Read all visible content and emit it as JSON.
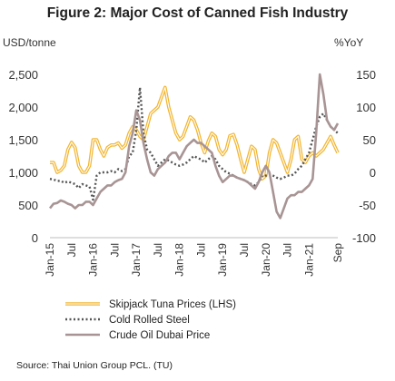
{
  "chart_data": {
    "type": "line",
    "title": "Figure 2: Major Cost of Canned Fish Industry",
    "y_left_unit": "USD/tonne",
    "y_right_unit": "%YoY",
    "ylim_left": [
      0,
      2500
    ],
    "ylim_right": [
      -100,
      150
    ],
    "y_left_ticks": [
      "0",
      "500",
      "1,000",
      "1,500",
      "2,000",
      "2,500"
    ],
    "y_right_ticks": [
      "-100",
      "-50",
      "0",
      "50",
      "100",
      "150"
    ],
    "x_start": "2015-01",
    "x_end": "2021-09",
    "x_tick_labels": [
      {
        "label": "Jan-15",
        "date": "2015-01"
      },
      {
        "label": "Jul",
        "date": "2015-07"
      },
      {
        "label": "Jan-16",
        "date": "2016-01"
      },
      {
        "label": "Jul",
        "date": "2016-07"
      },
      {
        "label": "Jan-17",
        "date": "2017-01"
      },
      {
        "label": "Jul",
        "date": "2017-07"
      },
      {
        "label": "Jan-18",
        "date": "2018-01"
      },
      {
        "label": "Jul",
        "date": "2018-07"
      },
      {
        "label": "Jan-19",
        "date": "2019-01"
      },
      {
        "label": "Jul",
        "date": "2019-07"
      },
      {
        "label": "Jan-20",
        "date": "2020-01"
      },
      {
        "label": "Jul",
        "date": "2020-07"
      },
      {
        "label": "Jan-21",
        "date": "2021-01"
      },
      {
        "label": "Sep",
        "date": "2021-09"
      }
    ],
    "series": [
      {
        "name": "Skipjack Tuna Prices (LHS)",
        "axis": "left",
        "color": "#F2B632",
        "style": "double",
        "points": [
          [
            "2015-01",
            1150
          ],
          [
            "2015-02",
            1150
          ],
          [
            "2015-03",
            1000
          ],
          [
            "2015-04",
            1030
          ],
          [
            "2015-05",
            1100
          ],
          [
            "2015-06",
            1350
          ],
          [
            "2015-07",
            1460
          ],
          [
            "2015-08",
            1380
          ],
          [
            "2015-09",
            1100
          ],
          [
            "2015-10",
            1000
          ],
          [
            "2015-11",
            1000
          ],
          [
            "2015-12",
            1100
          ],
          [
            "2016-01",
            1500
          ],
          [
            "2016-02",
            1500
          ],
          [
            "2016-03",
            1350
          ],
          [
            "2016-04",
            1250
          ],
          [
            "2016-05",
            1380
          ],
          [
            "2016-06",
            1420
          ],
          [
            "2016-07",
            1420
          ],
          [
            "2016-08",
            1450
          ],
          [
            "2016-09",
            1370
          ],
          [
            "2016-10",
            1420
          ],
          [
            "2016-11",
            1600
          ],
          [
            "2016-12",
            1700
          ],
          [
            "2017-01",
            1650
          ],
          [
            "2017-02",
            1550
          ],
          [
            "2017-03",
            1500
          ],
          [
            "2017-04",
            1700
          ],
          [
            "2017-05",
            1900
          ],
          [
            "2017-06",
            1950
          ],
          [
            "2017-07",
            2000
          ],
          [
            "2017-08",
            2150
          ],
          [
            "2017-09",
            2300
          ],
          [
            "2017-10",
            2000
          ],
          [
            "2017-11",
            1800
          ],
          [
            "2017-12",
            1600
          ],
          [
            "2018-01",
            1500
          ],
          [
            "2018-02",
            1550
          ],
          [
            "2018-03",
            1700
          ],
          [
            "2018-04",
            1850
          ],
          [
            "2018-05",
            1800
          ],
          [
            "2018-06",
            1650
          ],
          [
            "2018-07",
            1450
          ],
          [
            "2018-08",
            1300
          ],
          [
            "2018-09",
            1480
          ],
          [
            "2018-10",
            1600
          ],
          [
            "2018-11",
            1550
          ],
          [
            "2018-12",
            1350
          ],
          [
            "2019-01",
            1270
          ],
          [
            "2019-02",
            1350
          ],
          [
            "2019-03",
            1560
          ],
          [
            "2019-04",
            1580
          ],
          [
            "2019-05",
            1420
          ],
          [
            "2019-06",
            1200
          ],
          [
            "2019-07",
            1000
          ],
          [
            "2019-08",
            1200
          ],
          [
            "2019-09",
            1400
          ],
          [
            "2019-10",
            1350
          ],
          [
            "2019-11",
            1050
          ],
          [
            "2019-12",
            900
          ],
          [
            "2020-01",
            950
          ],
          [
            "2020-02",
            1300
          ],
          [
            "2020-03",
            1500
          ],
          [
            "2020-04",
            1450
          ],
          [
            "2020-05",
            1300
          ],
          [
            "2020-06",
            1150
          ],
          [
            "2020-07",
            1000
          ],
          [
            "2020-08",
            1200
          ],
          [
            "2020-09",
            1500
          ],
          [
            "2020-10",
            1550
          ],
          [
            "2020-11",
            1200
          ],
          [
            "2020-12",
            1150
          ],
          [
            "2021-01",
            1250
          ],
          [
            "2021-02",
            1300
          ],
          [
            "2021-03",
            1250
          ],
          [
            "2021-04",
            1300
          ],
          [
            "2021-05",
            1350
          ],
          [
            "2021-06",
            1450
          ],
          [
            "2021-07",
            1550
          ],
          [
            "2021-08",
            1420
          ],
          [
            "2021-09",
            1300
          ]
        ]
      },
      {
        "name": "Cold Rolled Steel",
        "axis": "right",
        "color": "#555555",
        "style": "dotted",
        "points": [
          [
            "2015-01",
            -10
          ],
          [
            "2015-02",
            -11
          ],
          [
            "2015-03",
            -13
          ],
          [
            "2015-04",
            -13
          ],
          [
            "2015-05",
            -16
          ],
          [
            "2015-06",
            -14
          ],
          [
            "2015-07",
            -16
          ],
          [
            "2015-08",
            -18
          ],
          [
            "2015-09",
            -24
          ],
          [
            "2015-10",
            -18
          ],
          [
            "2015-11",
            -20
          ],
          [
            "2015-12",
            -22
          ],
          [
            "2016-01",
            -42
          ],
          [
            "2016-02",
            -5
          ],
          [
            "2016-03",
            0
          ],
          [
            "2016-04",
            0
          ],
          [
            "2016-05",
            0
          ],
          [
            "2016-06",
            2
          ],
          [
            "2016-07",
            0
          ],
          [
            "2016-08",
            5
          ],
          [
            "2016-09",
            2
          ],
          [
            "2016-10",
            5
          ],
          [
            "2016-11",
            25
          ],
          [
            "2016-12",
            30
          ],
          [
            "2017-01",
            65
          ],
          [
            "2017-02",
            130
          ],
          [
            "2017-03",
            60
          ],
          [
            "2017-04",
            35
          ],
          [
            "2017-05",
            30
          ],
          [
            "2017-06",
            20
          ],
          [
            "2017-07",
            10
          ],
          [
            "2017-08",
            15
          ],
          [
            "2017-09",
            20
          ],
          [
            "2017-10",
            18
          ],
          [
            "2017-11",
            15
          ],
          [
            "2017-12",
            12
          ],
          [
            "2018-01",
            10
          ],
          [
            "2018-02",
            12
          ],
          [
            "2018-03",
            15
          ],
          [
            "2018-04",
            20
          ],
          [
            "2018-05",
            25
          ],
          [
            "2018-06",
            22
          ],
          [
            "2018-07",
            20
          ],
          [
            "2018-08",
            15
          ],
          [
            "2018-09",
            20
          ],
          [
            "2018-10",
            25
          ],
          [
            "2018-11",
            20
          ],
          [
            "2018-12",
            10
          ],
          [
            "2019-01",
            5
          ],
          [
            "2019-02",
            0
          ],
          [
            "2019-03",
            -2
          ],
          [
            "2019-04",
            -5
          ],
          [
            "2019-05",
            -8
          ],
          [
            "2019-06",
            -10
          ],
          [
            "2019-07",
            -12
          ],
          [
            "2019-08",
            -15
          ],
          [
            "2019-09",
            -18
          ],
          [
            "2019-10",
            -20
          ],
          [
            "2019-11",
            -15
          ],
          [
            "2019-12",
            -5
          ],
          [
            "2020-01",
            -5
          ],
          [
            "2020-02",
            -3
          ],
          [
            "2020-03",
            -5
          ],
          [
            "2020-04",
            -8
          ],
          [
            "2020-05",
            -10
          ],
          [
            "2020-06",
            -8
          ],
          [
            "2020-07",
            -5
          ],
          [
            "2020-08",
            -5
          ],
          [
            "2020-09",
            -2
          ],
          [
            "2020-10",
            5
          ],
          [
            "2020-11",
            10
          ],
          [
            "2020-12",
            20
          ],
          [
            "2021-01",
            30
          ],
          [
            "2021-02",
            50
          ],
          [
            "2021-03",
            70
          ],
          [
            "2021-04",
            85
          ],
          [
            "2021-05",
            90
          ],
          [
            "2021-06",
            80
          ],
          [
            "2021-07",
            70
          ],
          [
            "2021-08",
            65
          ],
          [
            "2021-09",
            60
          ]
        ]
      },
      {
        "name": "Crude Oil Dubai Price",
        "axis": "right",
        "color": "#A89494",
        "style": "solid",
        "points": [
          [
            "2015-01",
            -55
          ],
          [
            "2015-02",
            -48
          ],
          [
            "2015-03",
            -47
          ],
          [
            "2015-04",
            -43
          ],
          [
            "2015-05",
            -45
          ],
          [
            "2015-06",
            -48
          ],
          [
            "2015-07",
            -50
          ],
          [
            "2015-08",
            -55
          ],
          [
            "2015-09",
            -50
          ],
          [
            "2015-10",
            -50
          ],
          [
            "2015-11",
            -45
          ],
          [
            "2015-12",
            -45
          ],
          [
            "2016-01",
            -50
          ],
          [
            "2016-02",
            -40
          ],
          [
            "2016-03",
            -30
          ],
          [
            "2016-04",
            -25
          ],
          [
            "2016-05",
            -20
          ],
          [
            "2016-06",
            -20
          ],
          [
            "2016-07",
            -15
          ],
          [
            "2016-08",
            -12
          ],
          [
            "2016-09",
            -10
          ],
          [
            "2016-10",
            0
          ],
          [
            "2016-11",
            40
          ],
          [
            "2016-12",
            60
          ],
          [
            "2017-01",
            95
          ],
          [
            "2017-02",
            80
          ],
          [
            "2017-03",
            45
          ],
          [
            "2017-04",
            20
          ],
          [
            "2017-05",
            0
          ],
          [
            "2017-06",
            -5
          ],
          [
            "2017-07",
            5
          ],
          [
            "2017-08",
            10
          ],
          [
            "2017-09",
            15
          ],
          [
            "2017-10",
            25
          ],
          [
            "2017-11",
            30
          ],
          [
            "2017-12",
            30
          ],
          [
            "2018-01",
            20
          ],
          [
            "2018-02",
            30
          ],
          [
            "2018-03",
            40
          ],
          [
            "2018-04",
            45
          ],
          [
            "2018-05",
            50
          ],
          [
            "2018-06",
            45
          ],
          [
            "2018-07",
            45
          ],
          [
            "2018-08",
            40
          ],
          [
            "2018-09",
            35
          ],
          [
            "2018-10",
            30
          ],
          [
            "2018-11",
            10
          ],
          [
            "2018-12",
            -5
          ],
          [
            "2019-01",
            -15
          ],
          [
            "2019-02",
            -10
          ],
          [
            "2019-03",
            -5
          ],
          [
            "2019-04",
            -5
          ],
          [
            "2019-05",
            -8
          ],
          [
            "2019-06",
            -10
          ],
          [
            "2019-07",
            -12
          ],
          [
            "2019-08",
            -15
          ],
          [
            "2019-09",
            -20
          ],
          [
            "2019-10",
            -25
          ],
          [
            "2019-11",
            -15
          ],
          [
            "2019-12",
            0
          ],
          [
            "2020-01",
            10
          ],
          [
            "2020-02",
            0
          ],
          [
            "2020-03",
            -30
          ],
          [
            "2020-04",
            -60
          ],
          [
            "2020-05",
            -70
          ],
          [
            "2020-06",
            -55
          ],
          [
            "2020-07",
            -40
          ],
          [
            "2020-08",
            -35
          ],
          [
            "2020-09",
            -35
          ],
          [
            "2020-10",
            -30
          ],
          [
            "2020-11",
            -30
          ],
          [
            "2020-12",
            -25
          ],
          [
            "2021-01",
            -20
          ],
          [
            "2021-02",
            -10
          ],
          [
            "2021-03",
            60
          ],
          [
            "2021-04",
            150
          ],
          [
            "2021-05",
            120
          ],
          [
            "2021-06",
            80
          ],
          [
            "2021-07",
            70
          ],
          [
            "2021-08",
            65
          ],
          [
            "2021-09",
            75
          ]
        ]
      }
    ],
    "legend_position": "bottom",
    "grid": false
  },
  "source": "Source: Thai Union Group PCL. (TU)"
}
